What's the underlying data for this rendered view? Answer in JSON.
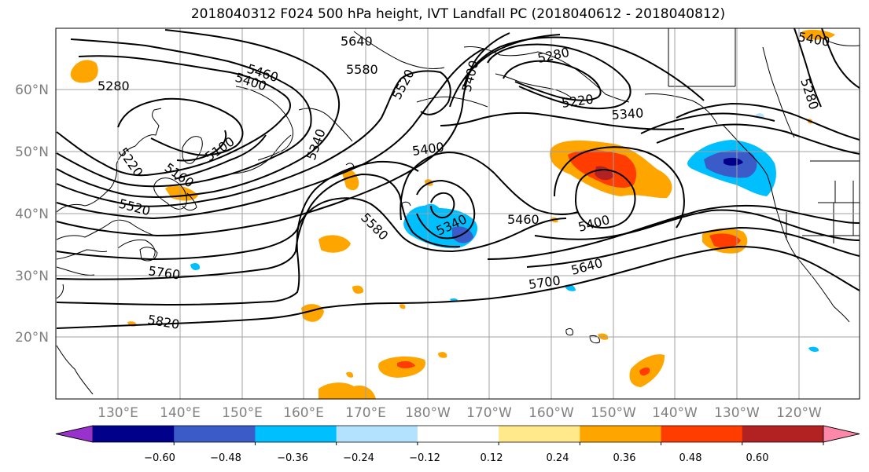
{
  "title": "2018040312 F024 500 hPa height, IVT Landfall PC (2018040612 - 2018040812)",
  "colors": {
    "contour": "#000000",
    "grid": "#a0a0a0",
    "coast": "#000000",
    "pos_weak": "#ffe98a",
    "pos_mid": "#ffa500",
    "pos_strong": "#ff3d00",
    "pos_max": "#b22222",
    "neg_weak": "#b3e2ff",
    "neg_mid": "#00bfff",
    "neg_strong": "#3a5bc8"
  },
  "map": {
    "lat_labels": [
      "60°N",
      "50°N",
      "40°N",
      "30°N",
      "20°N"
    ],
    "lon_labels": [
      "130°E",
      "140°E",
      "150°E",
      "160°E",
      "170°E",
      "180°W",
      "170°W",
      "160°W",
      "150°W",
      "140°W",
      "130°W",
      "120°W"
    ]
  },
  "contour_labels": [
    {
      "text": "5640"
    },
    {
      "text": "5580"
    },
    {
      "text": "5460"
    },
    {
      "text": "5400"
    },
    {
      "text": "5520"
    },
    {
      "text": "5400"
    },
    {
      "text": "5280"
    },
    {
      "text": "5280"
    },
    {
      "text": "5220"
    },
    {
      "text": "5340"
    },
    {
      "text": "5340"
    },
    {
      "text": "5100"
    },
    {
      "text": "5220"
    },
    {
      "text": "5160"
    },
    {
      "text": "5520"
    },
    {
      "text": "5400"
    },
    {
      "text": "5580"
    },
    {
      "text": "5340"
    },
    {
      "text": "5460"
    },
    {
      "text": "5400"
    },
    {
      "text": "5640"
    },
    {
      "text": "5700"
    },
    {
      "text": "5760"
    },
    {
      "text": "5820"
    },
    {
      "text": "5400"
    },
    {
      "text": "5280"
    }
  ],
  "colorbar": {
    "tick_labels": [
      "−0.60",
      "−0.48",
      "−0.36",
      "−0.24",
      "−0.12",
      "0.12",
      "0.24",
      "0.36",
      "0.48",
      "0.60"
    ],
    "colors": [
      "#9932cc",
      "#00008b",
      "#3a5bc8",
      "#00bfff",
      "#b3e2ff",
      "#ffffff",
      "#ffe98a",
      "#ffa500",
      "#ff3d00",
      "#b22222",
      "#ff88aa"
    ]
  }
}
